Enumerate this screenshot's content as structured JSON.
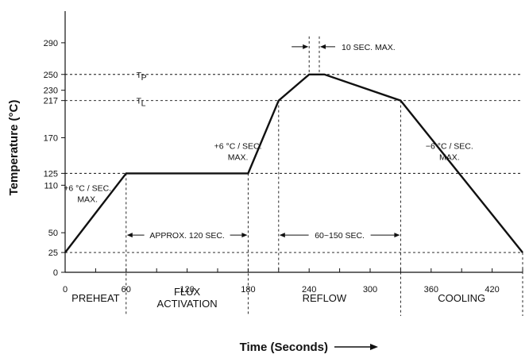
{
  "chart_data": {
    "type": "line",
    "xlabel": "Time (Seconds)",
    "ylabel": "Temperature (°C)",
    "xlim": [
      0,
      450
    ],
    "ylim": [
      0,
      330
    ],
    "xticks": [
      0,
      60,
      120,
      180,
      240,
      300,
      360,
      420
    ],
    "yticks": [
      0,
      25,
      50,
      110,
      125,
      170,
      217,
      230,
      250,
      290
    ],
    "grid_y": [
      25,
      125,
      217,
      250
    ],
    "series": [
      {
        "points": [
          [
            0,
            25
          ],
          [
            60,
            125
          ],
          [
            180,
            125
          ],
          [
            210,
            217
          ],
          [
            240,
            250
          ],
          [
            255,
            250
          ],
          [
            330,
            217
          ],
          [
            450,
            25
          ]
        ]
      }
    ],
    "level_labels": [
      {
        "main": "T",
        "sub": "P",
        "y": 250,
        "x": 70
      },
      {
        "main": "T",
        "sub": "L",
        "y": 217,
        "x": 70
      }
    ],
    "phase_boundaries": [
      60,
      180,
      330,
      450
    ],
    "phases": [
      {
        "lines": [
          "PREHEAT"
        ],
        "x": 30
      },
      {
        "lines": [
          "FLUX",
          "ACTIVATION"
        ],
        "x": 120
      },
      {
        "lines": [
          "REFLOW"
        ],
        "x": 255
      },
      {
        "lines": [
          "COOLING"
        ],
        "x": 390
      }
    ],
    "durations": [
      {
        "label": "APPROX. 120 SEC.",
        "x_from": 60,
        "x_to": 180,
        "y": 50
      },
      {
        "label": "60~150 SEC.",
        "x_from": 210,
        "x_to": 330,
        "y": 50
      }
    ],
    "peak_time": {
      "label": "10 SEC. MAX.",
      "x_from": 240,
      "x_to": 250,
      "y": 290
    },
    "rate_annotations": [
      {
        "lines": [
          "+6 °C / SEC.",
          "MAX."
        ],
        "x": 22,
        "y": 103
      },
      {
        "lines": [
          "+6 °C / SEC.",
          "MAX."
        ],
        "x": 170,
        "y": 156
      },
      {
        "lines": [
          "−6 °C / SEC.",
          "MAX."
        ],
        "x": 378,
        "y": 156
      }
    ]
  }
}
